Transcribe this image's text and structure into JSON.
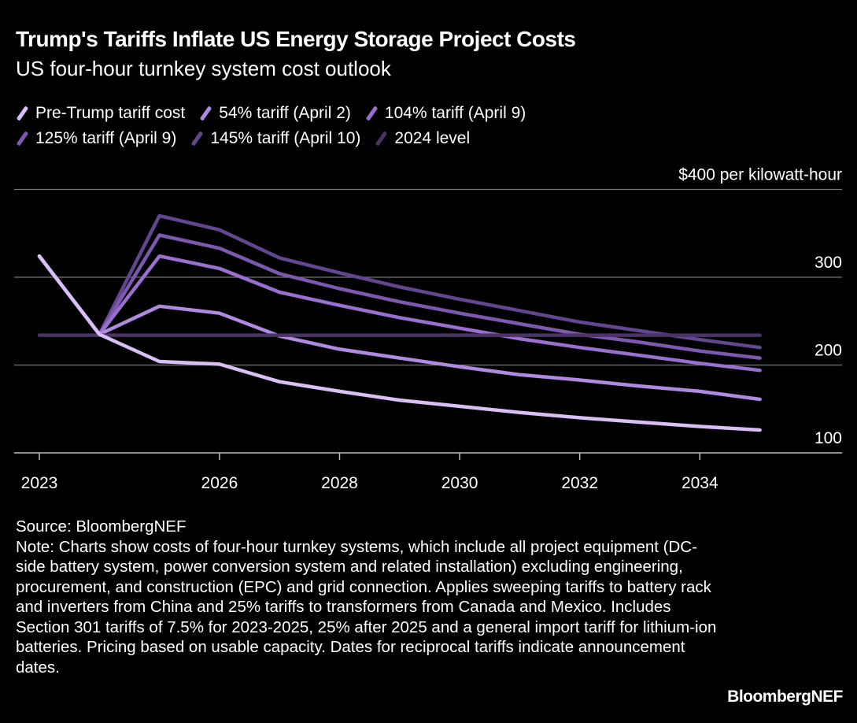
{
  "title": "Trump's Tariffs Inflate US Energy Storage Project Costs",
  "subtitle": "US four-hour turnkey system cost outlook",
  "source": "Source: BloombergNEF",
  "note": "Note: Charts show costs of four-hour turnkey systems, which include all project equipment (DC-side battery system, power conversion system and related installation) excluding engineering, procurement, and construction (EPC) and grid connection. Applies sweeping tariffs to battery rack and inverters from China and 25% tariffs to transformers from Canada and Mexico. Includes Section 301 tariffs of 7.5% for 2023-2025, 25% after 2025 and a general import tariff for lithium-ion batteries. Pricing based on usable capacity. Dates for reciprocal tariffs indicate announcement dates.",
  "brand": "BloombergNEF",
  "chart_data": {
    "type": "line",
    "title": "Trump's Tariffs Inflate US Energy Storage Project Costs",
    "subtitle": "US four-hour turnkey system cost outlook",
    "ylabel": "$400 per kilowatt-hour",
    "ylim": [
      80,
      400
    ],
    "xlim": [
      2023,
      2035
    ],
    "y_ticks": [
      100,
      200,
      300,
      400
    ],
    "y_tick_labels": [
      "100",
      "200",
      "300",
      "$400 per kilowatt-hour"
    ],
    "x_ticks": [
      2023,
      2026,
      2028,
      2030,
      2032,
      2034
    ],
    "x_tick_labels": [
      "2023",
      "2026",
      "2028",
      "2030",
      "2032",
      "2034"
    ],
    "grid": true,
    "legend_placement": "top-left",
    "x": [
      2023,
      2024,
      2025,
      2026,
      2027,
      2028,
      2029,
      2030,
      2031,
      2032,
      2033,
      2034,
      2035
    ],
    "series": [
      {
        "name": "145% tariff (April 10)",
        "color": "#634690",
        "values": [
          324,
          235,
          370,
          354,
          322,
          305,
          289,
          275,
          262,
          249,
          239,
          229,
          220
        ]
      },
      {
        "name": "125% tariff (April 9)",
        "color": "#7d58b0",
        "values": [
          324,
          235,
          348,
          333,
          304,
          287,
          272,
          259,
          247,
          235,
          226,
          216,
          208
        ]
      },
      {
        "name": "104% tariff (April 9)",
        "color": "#9a6fd0",
        "values": [
          324,
          235,
          324,
          310,
          283,
          268,
          254,
          242,
          230,
          220,
          211,
          202,
          194
        ]
      },
      {
        "name": "54% tariff (April 2)",
        "color": "#b08ae0",
        "values": [
          324,
          235,
          267,
          259,
          233,
          218,
          208,
          198,
          189,
          183,
          176,
          170,
          161
        ]
      },
      {
        "name": "2024 level",
        "color": "#4a3466",
        "values": [
          234,
          234,
          234,
          234,
          234,
          234,
          234,
          234,
          234,
          234,
          234,
          234,
          234
        ]
      },
      {
        "name": "Pre-Trump tariff cost",
        "color": "#d9bff5",
        "values": [
          324,
          235,
          204,
          201,
          181,
          170,
          160,
          153,
          146,
          140,
          135,
          130,
          126
        ]
      }
    ],
    "legend_order": [
      "Pre-Trump tariff cost",
      "54% tariff (April 2)",
      "104% tariff (April 9)",
      "125% tariff (April 9)",
      "145% tariff (April 10)",
      "2024 level"
    ]
  }
}
